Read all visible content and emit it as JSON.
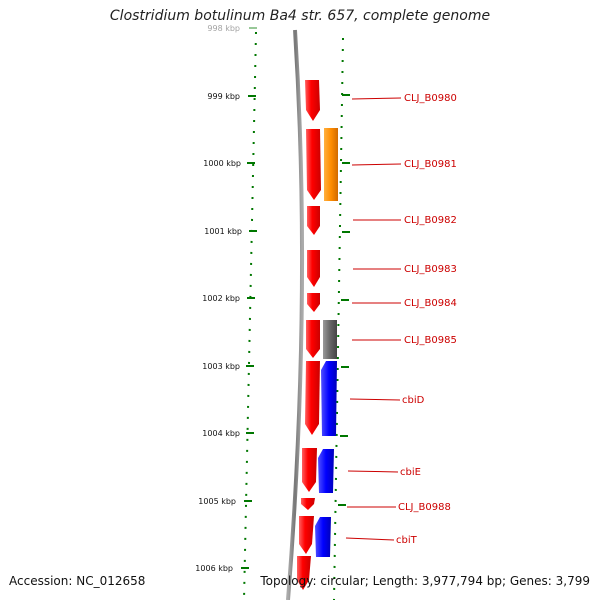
{
  "title": "Clostridium botulinum Ba4 str. 657, complete genome",
  "accession": "Accession: NC_012658",
  "topology": "Topology: circular; Length: 3,977,794 bp; Genes: 3,799",
  "kbp_labels": [
    "998 kbp",
    "999 kbp",
    "1000 kbp",
    "1001 kbp",
    "1002 kbp",
    "1003 kbp",
    "1004 kbp",
    "1005 kbp",
    "1006 kbp"
  ],
  "genes": [
    "CLJ_B0980",
    "CLJ_B0981",
    "CLJ_B0982",
    "CLJ_B0983",
    "CLJ_B0984",
    "CLJ_B0985",
    "cbiD",
    "cbiE",
    "CLJ_B0988",
    "cbiT"
  ],
  "colors": {
    "red": "#ff0000",
    "orange": "#ff8c00",
    "gray": "#666666",
    "blue": "#0000ff",
    "tick": "#007700",
    "label": "#cc0000"
  }
}
